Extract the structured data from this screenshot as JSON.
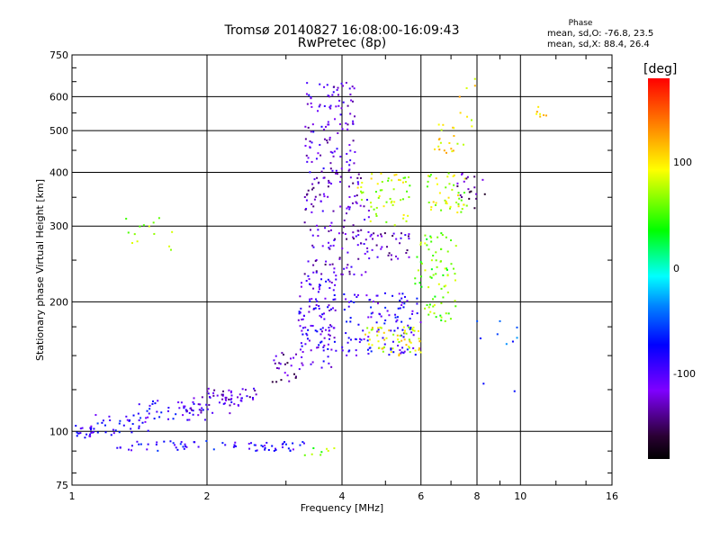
{
  "chart_data": {
    "type": "scatter",
    "title": "Tromsø 20140827 16:08:00-16:09:43",
    "subtitle": "RwPretec (8p)",
    "xlabel": "Frequency [MHz]",
    "ylabel": "Stationary phase Virtual Height [km]",
    "x_scale": "log",
    "y_scale": "log",
    "xlim": [
      1,
      16
    ],
    "ylim": [
      75,
      750
    ],
    "x_ticks": [
      "1",
      "2",
      "4",
      "6",
      "8",
      "10",
      "16"
    ],
    "y_ticks": [
      "75",
      "100",
      "200",
      "300",
      "400",
      "500",
      "600",
      "750"
    ],
    "grid": true,
    "phase_legend": {
      "title": "Phase",
      "stat_o": "mean, sd,O: -76.8, 23.5",
      "stat_x": "mean, sd,X:  88.4, 26.4"
    },
    "colorbar": {
      "unit": "[deg]",
      "ticks": [
        "100",
        "0",
        "-100"
      ],
      "tick_values": [
        100,
        0,
        -100
      ],
      "range": [
        -180,
        180
      ]
    },
    "clusters": [
      {
        "x_range": [
          1.0,
          1.12
        ],
        "y_range": [
          96,
          104
        ],
        "phase": -90,
        "count": 20
      },
      {
        "x_range": [
          1.1,
          1.5
        ],
        "y_range": [
          98,
          110
        ],
        "phase": -85,
        "count": 35
      },
      {
        "x_range": [
          1.35,
          2.0
        ],
        "y_range": [
          106,
          118
        ],
        "phase": -90,
        "count": 40
      },
      {
        "x_range": [
          1.8,
          2.4
        ],
        "y_range": [
          110,
          122
        ],
        "phase": -110,
        "count": 35
      },
      {
        "x_range": [
          2.0,
          2.6
        ],
        "y_range": [
          118,
          126
        ],
        "phase": -120,
        "count": 30
      },
      {
        "x_range": [
          1.25,
          3.3
        ],
        "y_range": [
          90,
          95
        ],
        "phase": -85,
        "count": 70
      },
      {
        "x_range": [
          3.3,
          3.9
        ],
        "y_range": [
          88,
          92
        ],
        "phase": 60,
        "count": 8
      },
      {
        "x_range": [
          1.3,
          1.7
        ],
        "y_range": [
          260,
          320
        ],
        "phase": 80,
        "count": 14
      },
      {
        "x_range": [
          2.8,
          3.3
        ],
        "y_range": [
          130,
          155
        ],
        "phase": -130,
        "count": 25
      },
      {
        "x_range": [
          3.2,
          3.9
        ],
        "y_range": [
          140,
          230
        ],
        "phase": -100,
        "count": 120
      },
      {
        "x_range": [
          3.3,
          4.6
        ],
        "y_range": [
          230,
          400
        ],
        "phase": -120,
        "count": 140
      },
      {
        "x_range": [
          3.3,
          4.3
        ],
        "y_range": [
          400,
          650
        ],
        "phase": -110,
        "count": 110
      },
      {
        "x_range": [
          4.0,
          6.0
        ],
        "y_range": [
          150,
          210
        ],
        "phase": -90,
        "count": 120
      },
      {
        "x_range": [
          4.5,
          6.0
        ],
        "y_range": [
          150,
          175
        ],
        "phase": 90,
        "count": 60
      },
      {
        "x_range": [
          4.3,
          5.7
        ],
        "y_range": [
          300,
          400
        ],
        "phase": 80,
        "count": 55
      },
      {
        "x_range": [
          4.5,
          5.7
        ],
        "y_range": [
          250,
          290
        ],
        "phase": -120,
        "count": 35
      },
      {
        "x_range": [
          5.8,
          7.2
        ],
        "y_range": [
          180,
          290
        ],
        "phase": 60,
        "count": 80
      },
      {
        "x_range": [
          6.2,
          7.6
        ],
        "y_range": [
          320,
          400
        ],
        "phase": 80,
        "count": 45
      },
      {
        "x_range": [
          6.4,
          7.6
        ],
        "y_range": [
          440,
          520
        ],
        "phase": 100,
        "count": 20
      },
      {
        "x_range": [
          7.2,
          8.4
        ],
        "y_range": [
          330,
          400
        ],
        "phase": -140,
        "count": 20
      },
      {
        "x_range": [
          7.3,
          8.0
        ],
        "y_range": [
          500,
          660
        ],
        "phase": 100,
        "count": 8
      },
      {
        "x_range": [
          10.8,
          12.2
        ],
        "y_range": [
          530,
          570
        ],
        "phase": 100,
        "count": 7
      },
      {
        "x_range": [
          8.0,
          10.0
        ],
        "y_range": [
          120,
          220
        ],
        "phase": -60,
        "count": 10
      }
    ]
  }
}
